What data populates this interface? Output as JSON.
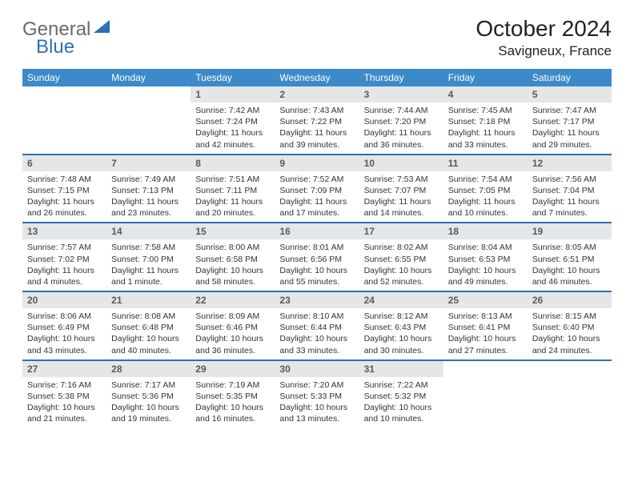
{
  "brand": {
    "part1": "General",
    "part2": "Blue"
  },
  "title": "October 2024",
  "location": "Savigneux, France",
  "colors": {
    "header_bg": "#3c8ac9",
    "row_border": "#2d6fb4",
    "daynum_bg": "#e4e6e8",
    "text": "#333333",
    "logo_grey": "#6a6a6a",
    "logo_blue": "#2d6fb4"
  },
  "weekdays": [
    "Sunday",
    "Monday",
    "Tuesday",
    "Wednesday",
    "Thursday",
    "Friday",
    "Saturday"
  ],
  "weeks": [
    [
      {
        "empty": true
      },
      {
        "empty": true
      },
      {
        "day": "1",
        "sunrise": "Sunrise: 7:42 AM",
        "sunset": "Sunset: 7:24 PM",
        "daylight": "Daylight: 11 hours and 42 minutes."
      },
      {
        "day": "2",
        "sunrise": "Sunrise: 7:43 AM",
        "sunset": "Sunset: 7:22 PM",
        "daylight": "Daylight: 11 hours and 39 minutes."
      },
      {
        "day": "3",
        "sunrise": "Sunrise: 7:44 AM",
        "sunset": "Sunset: 7:20 PM",
        "daylight": "Daylight: 11 hours and 36 minutes."
      },
      {
        "day": "4",
        "sunrise": "Sunrise: 7:45 AM",
        "sunset": "Sunset: 7:18 PM",
        "daylight": "Daylight: 11 hours and 33 minutes."
      },
      {
        "day": "5",
        "sunrise": "Sunrise: 7:47 AM",
        "sunset": "Sunset: 7:17 PM",
        "daylight": "Daylight: 11 hours and 29 minutes."
      }
    ],
    [
      {
        "day": "6",
        "sunrise": "Sunrise: 7:48 AM",
        "sunset": "Sunset: 7:15 PM",
        "daylight": "Daylight: 11 hours and 26 minutes."
      },
      {
        "day": "7",
        "sunrise": "Sunrise: 7:49 AM",
        "sunset": "Sunset: 7:13 PM",
        "daylight": "Daylight: 11 hours and 23 minutes."
      },
      {
        "day": "8",
        "sunrise": "Sunrise: 7:51 AM",
        "sunset": "Sunset: 7:11 PM",
        "daylight": "Daylight: 11 hours and 20 minutes."
      },
      {
        "day": "9",
        "sunrise": "Sunrise: 7:52 AM",
        "sunset": "Sunset: 7:09 PM",
        "daylight": "Daylight: 11 hours and 17 minutes."
      },
      {
        "day": "10",
        "sunrise": "Sunrise: 7:53 AM",
        "sunset": "Sunset: 7:07 PM",
        "daylight": "Daylight: 11 hours and 14 minutes."
      },
      {
        "day": "11",
        "sunrise": "Sunrise: 7:54 AM",
        "sunset": "Sunset: 7:05 PM",
        "daylight": "Daylight: 11 hours and 10 minutes."
      },
      {
        "day": "12",
        "sunrise": "Sunrise: 7:56 AM",
        "sunset": "Sunset: 7:04 PM",
        "daylight": "Daylight: 11 hours and 7 minutes."
      }
    ],
    [
      {
        "day": "13",
        "sunrise": "Sunrise: 7:57 AM",
        "sunset": "Sunset: 7:02 PM",
        "daylight": "Daylight: 11 hours and 4 minutes."
      },
      {
        "day": "14",
        "sunrise": "Sunrise: 7:58 AM",
        "sunset": "Sunset: 7:00 PM",
        "daylight": "Daylight: 11 hours and 1 minute."
      },
      {
        "day": "15",
        "sunrise": "Sunrise: 8:00 AM",
        "sunset": "Sunset: 6:58 PM",
        "daylight": "Daylight: 10 hours and 58 minutes."
      },
      {
        "day": "16",
        "sunrise": "Sunrise: 8:01 AM",
        "sunset": "Sunset: 6:56 PM",
        "daylight": "Daylight: 10 hours and 55 minutes."
      },
      {
        "day": "17",
        "sunrise": "Sunrise: 8:02 AM",
        "sunset": "Sunset: 6:55 PM",
        "daylight": "Daylight: 10 hours and 52 minutes."
      },
      {
        "day": "18",
        "sunrise": "Sunrise: 8:04 AM",
        "sunset": "Sunset: 6:53 PM",
        "daylight": "Daylight: 10 hours and 49 minutes."
      },
      {
        "day": "19",
        "sunrise": "Sunrise: 8:05 AM",
        "sunset": "Sunset: 6:51 PM",
        "daylight": "Daylight: 10 hours and 46 minutes."
      }
    ],
    [
      {
        "day": "20",
        "sunrise": "Sunrise: 8:06 AM",
        "sunset": "Sunset: 6:49 PM",
        "daylight": "Daylight: 10 hours and 43 minutes."
      },
      {
        "day": "21",
        "sunrise": "Sunrise: 8:08 AM",
        "sunset": "Sunset: 6:48 PM",
        "daylight": "Daylight: 10 hours and 40 minutes."
      },
      {
        "day": "22",
        "sunrise": "Sunrise: 8:09 AM",
        "sunset": "Sunset: 6:46 PM",
        "daylight": "Daylight: 10 hours and 36 minutes."
      },
      {
        "day": "23",
        "sunrise": "Sunrise: 8:10 AM",
        "sunset": "Sunset: 6:44 PM",
        "daylight": "Daylight: 10 hours and 33 minutes."
      },
      {
        "day": "24",
        "sunrise": "Sunrise: 8:12 AM",
        "sunset": "Sunset: 6:43 PM",
        "daylight": "Daylight: 10 hours and 30 minutes."
      },
      {
        "day": "25",
        "sunrise": "Sunrise: 8:13 AM",
        "sunset": "Sunset: 6:41 PM",
        "daylight": "Daylight: 10 hours and 27 minutes."
      },
      {
        "day": "26",
        "sunrise": "Sunrise: 8:15 AM",
        "sunset": "Sunset: 6:40 PM",
        "daylight": "Daylight: 10 hours and 24 minutes."
      }
    ],
    [
      {
        "day": "27",
        "sunrise": "Sunrise: 7:16 AM",
        "sunset": "Sunset: 5:38 PM",
        "daylight": "Daylight: 10 hours and 21 minutes."
      },
      {
        "day": "28",
        "sunrise": "Sunrise: 7:17 AM",
        "sunset": "Sunset: 5:36 PM",
        "daylight": "Daylight: 10 hours and 19 minutes."
      },
      {
        "day": "29",
        "sunrise": "Sunrise: 7:19 AM",
        "sunset": "Sunset: 5:35 PM",
        "daylight": "Daylight: 10 hours and 16 minutes."
      },
      {
        "day": "30",
        "sunrise": "Sunrise: 7:20 AM",
        "sunset": "Sunset: 5:33 PM",
        "daylight": "Daylight: 10 hours and 13 minutes."
      },
      {
        "day": "31",
        "sunrise": "Sunrise: 7:22 AM",
        "sunset": "Sunset: 5:32 PM",
        "daylight": "Daylight: 10 hours and 10 minutes."
      },
      {
        "empty": true
      },
      {
        "empty": true
      }
    ]
  ]
}
